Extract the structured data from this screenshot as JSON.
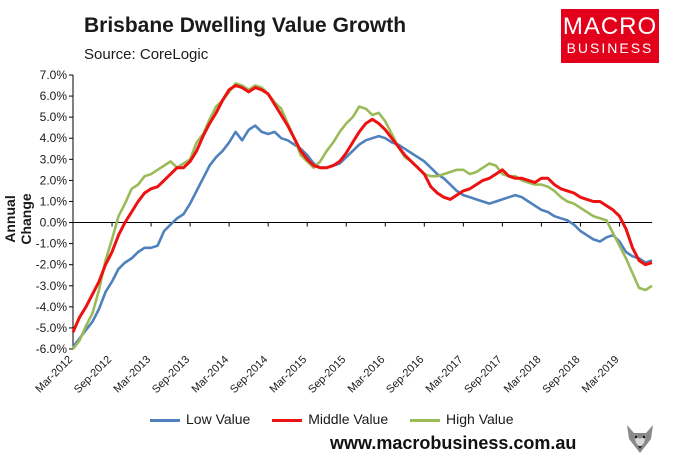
{
  "header": {
    "title": "Brisbane Dwelling Value Growth",
    "source": "Source: CoreLogic"
  },
  "logo": {
    "line1": "MACRO",
    "line2": "BUSINESS"
  },
  "footer": {
    "url": "www.macrobusiness.com.au"
  },
  "colors": {
    "low": "#4f81bd",
    "middle": "#ee1111",
    "high": "#9bbb59",
    "brand": "#e3001b"
  },
  "chart_data": {
    "type": "line",
    "title": "Brisbane Dwelling Value Growth",
    "ylabel": "Annual Change",
    "xlabel": "",
    "ylim": [
      -6,
      7
    ],
    "yticks": [
      "-6.0%",
      "-5.0%",
      "-4.0%",
      "-3.0%",
      "-2.0%",
      "-1.0%",
      "0.0%",
      "1.0%",
      "2.0%",
      "3.0%",
      "4.0%",
      "5.0%",
      "6.0%",
      "7.0%"
    ],
    "xticks": [
      "Mar-2012",
      "Sep-2012",
      "Mar-2013",
      "Sep-2013",
      "Mar-2014",
      "Sep-2014",
      "Mar-2015",
      "Sep-2015",
      "Mar-2016",
      "Sep-2016",
      "Mar-2017",
      "Sep-2017",
      "Mar-2018",
      "Sep-2018",
      "Mar-2019"
    ],
    "x_start": "Mar-2012",
    "x_end": "Nov-2019",
    "series": [
      {
        "name": "Low Value",
        "color": "#4f81bd",
        "values": [
          -5.9,
          -5.5,
          -5.1,
          -4.7,
          -4.1,
          -3.3,
          -2.8,
          -2.2,
          -1.9,
          -1.7,
          -1.4,
          -1.2,
          -1.2,
          -1.1,
          -0.4,
          -0.1,
          0.2,
          0.4,
          0.9,
          1.5,
          2.1,
          2.7,
          3.1,
          3.4,
          3.8,
          4.3,
          3.9,
          4.4,
          4.6,
          4.3,
          4.2,
          4.3,
          4.0,
          3.9,
          3.7,
          3.5,
          3.2,
          2.8,
          2.6,
          2.6,
          2.7,
          2.8,
          3.1,
          3.4,
          3.7,
          3.9,
          4.0,
          4.1,
          4.0,
          3.8,
          3.7,
          3.5,
          3.3,
          3.1,
          2.9,
          2.6,
          2.3,
          2.1,
          1.8,
          1.5,
          1.3,
          1.2,
          1.1,
          1.0,
          0.9,
          1.0,
          1.1,
          1.2,
          1.3,
          1.2,
          1.0,
          0.8,
          0.6,
          0.5,
          0.3,
          0.2,
          0.1,
          -0.1,
          -0.4,
          -0.6,
          -0.8,
          -0.9,
          -0.7,
          -0.6,
          -0.9,
          -1.4,
          -1.6,
          -1.7,
          -1.9,
          -1.8
        ]
      },
      {
        "name": "Middle Value",
        "color": "#ee1111",
        "values": [
          -5.2,
          -4.5,
          -4.0,
          -3.4,
          -2.8,
          -2.0,
          -1.4,
          -0.6,
          0.0,
          0.5,
          1.0,
          1.4,
          1.6,
          1.7,
          2.0,
          2.3,
          2.6,
          2.6,
          2.9,
          3.4,
          4.1,
          4.7,
          5.2,
          5.8,
          6.3,
          6.5,
          6.4,
          6.2,
          6.4,
          6.3,
          6.1,
          5.6,
          5.1,
          4.6,
          4.0,
          3.4,
          3.0,
          2.7,
          2.6,
          2.6,
          2.7,
          2.9,
          3.3,
          3.8,
          4.3,
          4.7,
          4.9,
          4.7,
          4.4,
          4.0,
          3.6,
          3.2,
          2.9,
          2.6,
          2.3,
          1.7,
          1.4,
          1.2,
          1.1,
          1.3,
          1.5,
          1.6,
          1.8,
          2.0,
          2.1,
          2.3,
          2.5,
          2.2,
          2.1,
          2.1,
          2.0,
          1.9,
          2.1,
          2.1,
          1.8,
          1.6,
          1.5,
          1.4,
          1.2,
          1.1,
          1.0,
          1.0,
          0.8,
          0.6,
          0.3,
          -0.3,
          -1.2,
          -1.8,
          -2.0,
          -1.9
        ]
      },
      {
        "name": "High Value",
        "color": "#9bbb59",
        "values": [
          -6.0,
          -5.6,
          -4.9,
          -4.3,
          -3.2,
          -1.8,
          -0.8,
          0.3,
          0.9,
          1.6,
          1.8,
          2.2,
          2.3,
          2.5,
          2.7,
          2.9,
          2.6,
          2.8,
          3.0,
          3.8,
          4.2,
          4.9,
          5.5,
          5.8,
          6.2,
          6.6,
          6.5,
          6.3,
          6.5,
          6.4,
          6.1,
          5.7,
          5.4,
          4.7,
          4.0,
          3.2,
          2.9,
          2.6,
          2.9,
          3.4,
          3.8,
          4.3,
          4.7,
          5.0,
          5.5,
          5.4,
          5.1,
          5.2,
          4.8,
          4.2,
          3.6,
          3.1,
          2.9,
          2.6,
          2.3,
          2.2,
          2.2,
          2.3,
          2.4,
          2.5,
          2.5,
          2.3,
          2.4,
          2.6,
          2.8,
          2.7,
          2.3,
          2.2,
          2.2,
          2.0,
          1.9,
          1.8,
          1.8,
          1.7,
          1.5,
          1.2,
          1.0,
          0.9,
          0.7,
          0.5,
          0.3,
          0.2,
          0.1,
          -0.5,
          -1.1,
          -1.7,
          -2.4,
          -3.1,
          -3.2,
          -3.0
        ]
      }
    ],
    "legend": [
      "Low Value",
      "Middle Value",
      "High Value"
    ],
    "legend_position": "bottom",
    "grid": false
  }
}
